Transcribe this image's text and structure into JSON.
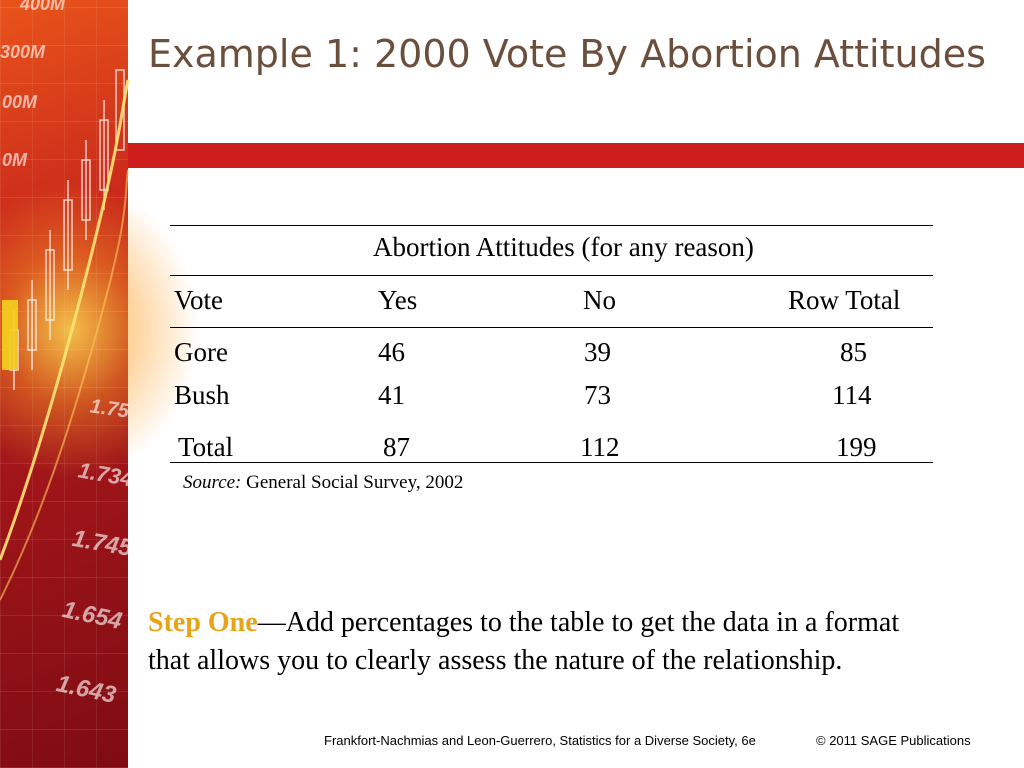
{
  "slide": {
    "title": "Example 1: 2000 Vote By Abortion Attitudes"
  },
  "side_art": {
    "numbers": [
      "400M",
      "300M",
      "00M",
      "0M",
      "1.75",
      "1.734",
      "1.745",
      "1.654",
      "1.643"
    ]
  },
  "table": {
    "group_header": "Abortion Attitudes (for any reason)",
    "columns": [
      "Vote",
      "Yes",
      "No",
      "Row Total"
    ],
    "rows": [
      {
        "label": "Gore",
        "yes": "46",
        "no": "39",
        "total": "85"
      },
      {
        "label": "Bush",
        "yes": "41",
        "no": "73",
        "total": "114"
      }
    ],
    "total_row": {
      "label": "Total",
      "yes": "87",
      "no": "112",
      "total": "199"
    },
    "source_label": "Source:",
    "source_text": "General Social Survey, 2002"
  },
  "step": {
    "highlight": "Step One",
    "text": "—Add percentages to the table to get the data in a format that allows you to clearly assess the nature of the relationship."
  },
  "footer": {
    "citation": "Frankfort-Nachmias and Leon-Guerrero, Statistics for a Diverse Society, 6e",
    "copyright": "© 2011 SAGE Publications"
  },
  "colors": {
    "title": "#6b4f3c",
    "accent_bar": "#cc1c1c",
    "step_highlight": "#e8a317"
  }
}
